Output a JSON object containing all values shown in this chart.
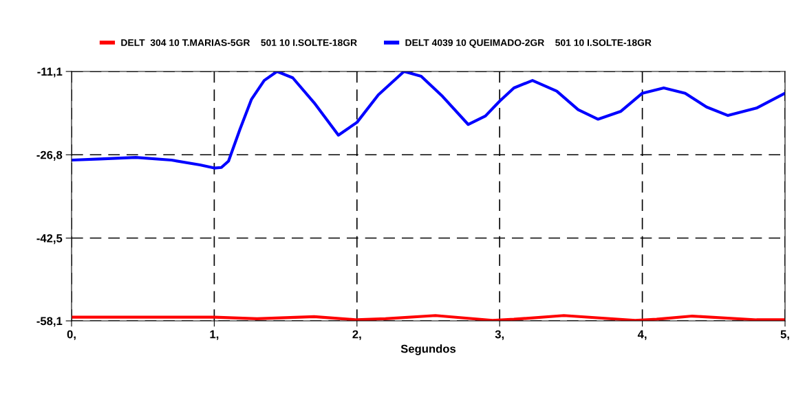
{
  "chart_data": {
    "type": "line",
    "xlabel": "Segundos",
    "legend": "top",
    "grid": true,
    "line_style": "solid",
    "marker": "none",
    "xlim": [
      0,
      5
    ],
    "ylim": [
      -58.1,
      -11.1
    ],
    "xticks": [
      {
        "value": 0,
        "label": "0,"
      },
      {
        "value": 1,
        "label": "1,"
      },
      {
        "value": 2,
        "label": "2,"
      },
      {
        "value": 3,
        "label": "3,"
      },
      {
        "value": 4,
        "label": "4,"
      },
      {
        "value": 5,
        "label": "5,"
      }
    ],
    "yticks": [
      {
        "value": -58.1,
        "label": "-58,1"
      },
      {
        "value": -42.5,
        "label": "-42,5"
      },
      {
        "value": -26.8,
        "label": "-26,8"
      },
      {
        "value": -11.1,
        "label": "-11,1"
      }
    ],
    "series": [
      {
        "name": "DELT  304 10 T.MARIAS-5GR    501 10 I.SOLTE-18GR",
        "color": "#ff0000",
        "x": [
          0,
          1,
          1.3,
          1.7,
          2.0,
          2.2,
          2.55,
          2.95,
          3.1,
          3.45,
          3.95,
          4.1,
          4.35,
          4.8,
          5
        ],
        "values": [
          -57.4,
          -57.4,
          -57.7,
          -57.3,
          -57.9,
          -57.7,
          -57.1,
          -58.0,
          -57.8,
          -57.1,
          -58.0,
          -57.8,
          -57.2,
          -57.9,
          -57.9
        ]
      },
      {
        "name": "DELT 4039 10 QUEIMADO-2GR    501 10 I.SOLTE-18GR",
        "color": "#0000ff",
        "x": [
          0,
          0.2,
          0.45,
          0.7,
          0.9,
          1.0,
          1.05,
          1.1,
          1.18,
          1.26,
          1.35,
          1.44,
          1.55,
          1.7,
          1.87,
          2.0,
          2.15,
          2.33,
          2.45,
          2.6,
          2.78,
          2.9,
          3.0,
          3.1,
          3.23,
          3.4,
          3.55,
          3.69,
          3.85,
          4.0,
          4.15,
          4.3,
          4.45,
          4.6,
          4.8,
          5
        ],
        "values": [
          -27.8,
          -27.6,
          -27.3,
          -27.8,
          -28.7,
          -29.3,
          -29.2,
          -28.0,
          -22.0,
          -16.4,
          -12.8,
          -11.1,
          -12.3,
          -17.0,
          -23.1,
          -20.7,
          -15.5,
          -11.1,
          -12.0,
          -15.8,
          -21.1,
          -19.5,
          -16.7,
          -14.2,
          -12.8,
          -14.8,
          -18.3,
          -20.1,
          -18.6,
          -15.2,
          -14.2,
          -15.2,
          -17.8,
          -19.4,
          -18.0,
          -15.2
        ]
      }
    ]
  }
}
